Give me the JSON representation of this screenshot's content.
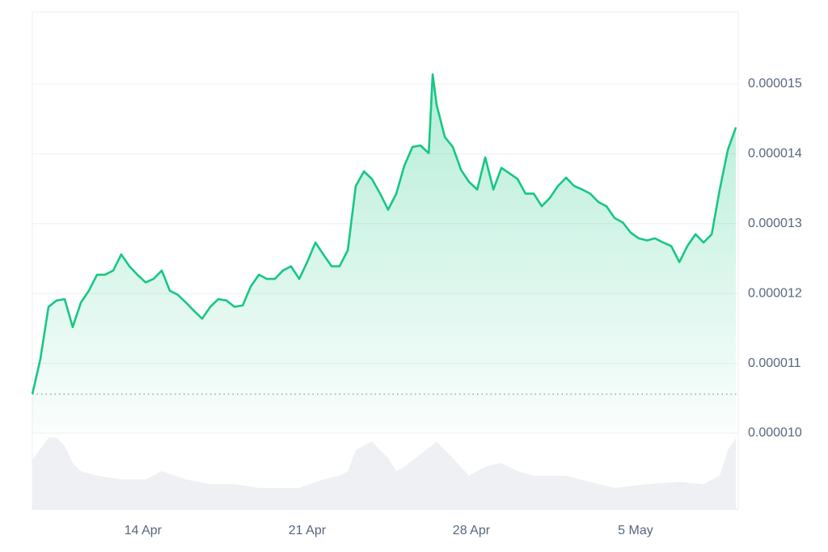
{
  "chart_data": {
    "type": "area",
    "color": "#16c784",
    "grid": true,
    "baseline": 1.056e-05,
    "xlim": [
      9.28,
      39.38
    ],
    "xticks": [
      {
        "value": 14,
        "label": "14 Apr"
      },
      {
        "value": 21,
        "label": "21 Apr"
      },
      {
        "value": 28,
        "label": "28 Apr"
      },
      {
        "value": 35,
        "label": "5 May"
      }
    ],
    "ylim": [
      1e-05,
      1.603e-05
    ],
    "yticks": [
      {
        "value": 1e-05,
        "label": "0.000010"
      },
      1.1e-05,
      1.2e-05,
      1.3e-05,
      1.4e-05,
      1.5e-05
    ],
    "x": [
      9.28,
      9.62,
      9.97,
      10.31,
      10.66,
      11.0,
      11.35,
      11.69,
      12.04,
      12.38,
      12.73,
      13.07,
      13.42,
      13.76,
      14.11,
      14.45,
      14.8,
      15.14,
      15.49,
      15.83,
      16.18,
      16.52,
      16.87,
      17.21,
      17.56,
      17.9,
      18.25,
      18.59,
      18.94,
      19.28,
      19.62,
      19.97,
      20.31,
      20.66,
      21.0,
      21.35,
      21.69,
      22.04,
      22.38,
      22.73,
      23.07,
      23.42,
      23.76,
      24.11,
      24.45,
      24.8,
      25.14,
      25.49,
      25.83,
      26.18,
      26.35,
      26.52,
      26.87,
      27.21,
      27.56,
      27.9,
      28.25,
      28.59,
      28.94,
      29.28,
      29.63,
      29.97,
      30.31,
      30.66,
      31.0,
      31.35,
      31.69,
      32.04,
      32.38,
      32.73,
      33.07,
      33.42,
      33.76,
      34.11,
      34.45,
      34.8,
      35.14,
      35.49,
      35.83,
      36.18,
      36.52,
      36.87,
      37.21,
      37.56,
      37.9,
      38.25,
      38.59,
      38.94,
      39.28
    ],
    "values": [
      1.056e-05,
      1.106e-05,
      1.181e-05,
      1.19e-05,
      1.192e-05,
      1.152e-05,
      1.187e-05,
      1.204e-05,
      1.227e-05,
      1.227e-05,
      1.233e-05,
      1.256e-05,
      1.239e-05,
      1.227e-05,
      1.216e-05,
      1.221e-05,
      1.233e-05,
      1.204e-05,
      1.198e-05,
      1.187e-05,
      1.175e-05,
      1.164e-05,
      1.181e-05,
      1.192e-05,
      1.19e-05,
      1.181e-05,
      1.183e-05,
      1.21e-05,
      1.227e-05,
      1.221e-05,
      1.221e-05,
      1.233e-05,
      1.239e-05,
      1.221e-05,
      1.245e-05,
      1.273e-05,
      1.256e-05,
      1.239e-05,
      1.239e-05,
      1.262e-05,
      1.354e-05,
      1.375e-05,
      1.364e-05,
      1.343e-05,
      1.32e-05,
      1.343e-05,
      1.383e-05,
      1.41e-05,
      1.412e-05,
      1.401e-05,
      1.514e-05,
      1.47e-05,
      1.424e-05,
      1.41e-05,
      1.377e-05,
      1.36e-05,
      1.349e-05,
      1.395e-05,
      1.349e-05,
      1.38e-05,
      1.372e-05,
      1.364e-05,
      1.343e-05,
      1.343e-05,
      1.325e-05,
      1.337e-05,
      1.354e-05,
      1.366e-05,
      1.354e-05,
      1.349e-05,
      1.343e-05,
      1.331e-05,
      1.325e-05,
      1.308e-05,
      1.302e-05,
      1.287e-05,
      1.279e-05,
      1.276e-05,
      1.279e-05,
      1.273e-05,
      1.268e-05,
      1.245e-05,
      1.268e-05,
      1.285e-05,
      1.273e-05,
      1.285e-05,
      1.349e-05,
      1.406e-05,
      1.438e-05
    ],
    "volume": {
      "color": "#eef0f3",
      "ylim": [
        0,
        100
      ],
      "x": [
        9.28,
        9.97,
        10.31,
        10.66,
        11.0,
        11.35,
        12.04,
        13.07,
        14.11,
        14.8,
        15.83,
        16.87,
        17.9,
        18.94,
        19.97,
        20.66,
        21.69,
        22.38,
        22.73,
        23.07,
        23.76,
        24.45,
        24.8,
        25.14,
        25.83,
        26.52,
        27.21,
        27.9,
        28.59,
        29.28,
        29.97,
        30.66,
        32.04,
        33.42,
        34.11,
        35.49,
        36.87,
        37.9,
        38.59,
        38.94,
        39.28
      ],
      "values": [
        65,
        94,
        94,
        83,
        61,
        50,
        44,
        39,
        39,
        50,
        39,
        33,
        33,
        28,
        28,
        28,
        39,
        44,
        50,
        78,
        89,
        67,
        50,
        56,
        72,
        89,
        67,
        44,
        56,
        61,
        50,
        44,
        44,
        33,
        28,
        33,
        36,
        33,
        44,
        78,
        94
      ]
    }
  }
}
